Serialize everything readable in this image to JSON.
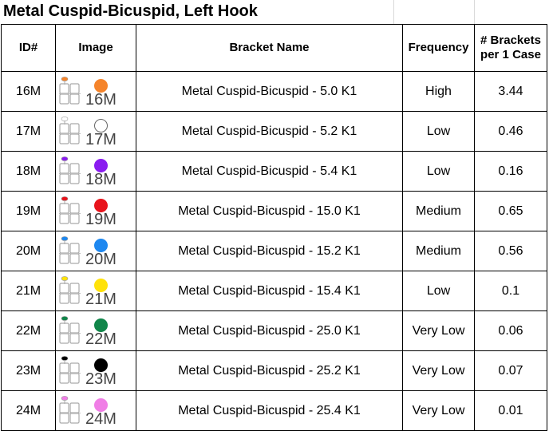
{
  "title": "Metal Cuspid-Bicuspid, Left Hook",
  "columns": {
    "id": "ID#",
    "image": "Image",
    "name": "Bracket Name",
    "frequency": "Frequency",
    "brackets_line1": "# Brackets",
    "brackets_line2": "per 1 Case"
  },
  "rows": [
    {
      "id": "16M",
      "code": "16M",
      "dot_color": "#f5842b",
      "cap_color": "#f5842b",
      "name": "Metal Cuspid-Bicuspid - 5.0 K1",
      "frequency": "High",
      "brackets": "3.44"
    },
    {
      "id": "17M",
      "code": "17M",
      "dot_color": "#ffffff",
      "cap_color": "#ffffff",
      "name": "Metal Cuspid-Bicuspid - 5.2 K1",
      "frequency": "Low",
      "brackets": "0.46"
    },
    {
      "id": "18M",
      "code": "18M",
      "dot_color": "#8a1cf0",
      "cap_color": "#8a1cf0",
      "name": "Metal Cuspid-Bicuspid - 5.4 K1",
      "frequency": "Low",
      "brackets": "0.16"
    },
    {
      "id": "19M",
      "code": "19M",
      "dot_color": "#e8141c",
      "cap_color": "#e8141c",
      "name": "Metal Cuspid-Bicuspid - 15.0 K1",
      "frequency": "Medium",
      "brackets": "0.65"
    },
    {
      "id": "20M",
      "code": "20M",
      "dot_color": "#1e88f0",
      "cap_color": "#1e88f0",
      "name": "Metal Cuspid-Bicuspid - 15.2 K1",
      "frequency": "Medium",
      "brackets": "0.56"
    },
    {
      "id": "21M",
      "code": "21M",
      "dot_color": "#ffe20a",
      "cap_color": "#ffe20a",
      "name": "Metal Cuspid-Bicuspid - 15.4 K1",
      "frequency": "Low",
      "brackets": "0.1"
    },
    {
      "id": "22M",
      "code": "22M",
      "dot_color": "#11864a",
      "cap_color": "#11864a",
      "name": "Metal Cuspid-Bicuspid - 25.0 K1",
      "frequency": "Very Low",
      "brackets": "0.06"
    },
    {
      "id": "23M",
      "code": "23M",
      "dot_color": "#000000",
      "cap_color": "#000000",
      "name": "Metal Cuspid-Bicuspid - 25.2 K1",
      "frequency": "Very Low",
      "brackets": "0.07"
    },
    {
      "id": "24M",
      "code": "24M",
      "dot_color": "#f07ee6",
      "cap_color": "#f07ee6",
      "name": "Metal Cuspid-Bicuspid - 25.4 K1",
      "frequency": "Very Low",
      "brackets": "0.01"
    }
  ]
}
